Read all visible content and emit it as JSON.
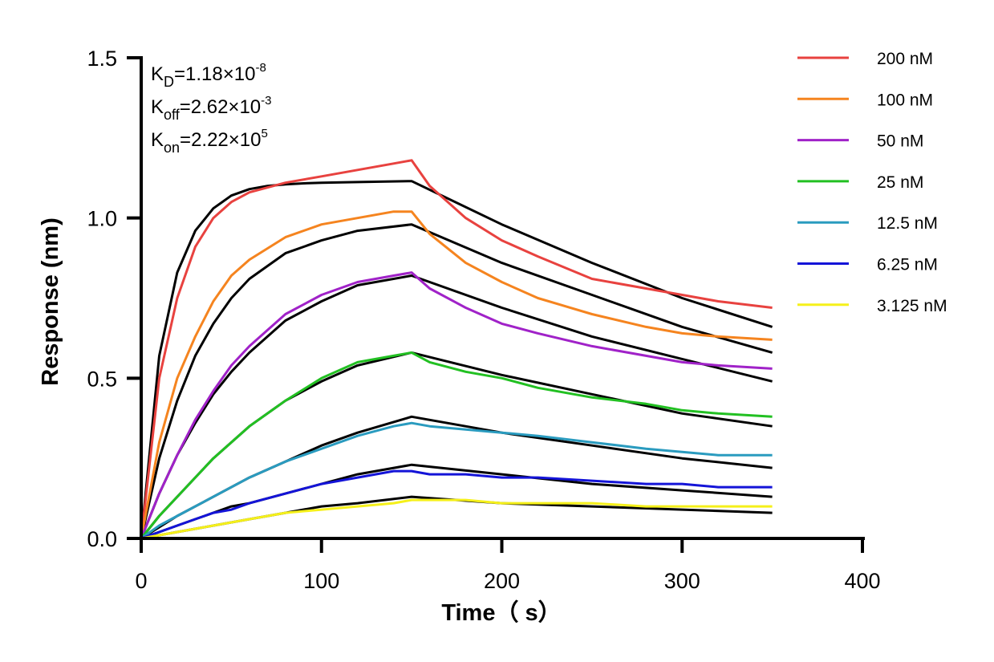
{
  "chart_data": {
    "type": "line",
    "xlabel": "Time（ s）",
    "ylabel": "Response (nm)",
    "xlim": [
      0,
      400
    ],
    "ylim": [
      0,
      1.5
    ],
    "x_ticks": [
      0,
      100,
      200,
      300,
      400
    ],
    "x_tick_labels": [
      "0",
      "100",
      "200",
      "300",
      "400"
    ],
    "y_ticks": [
      0,
      0.5,
      1.0,
      1.5
    ],
    "y_tick_labels": [
      "0.0",
      "0.5",
      "1.0",
      "1.5"
    ],
    "legend_position": "top-right",
    "grid": false,
    "annotations": [
      {
        "base": "K",
        "sub": "D",
        "mid": "=1.18×10",
        "sup": "-8"
      },
      {
        "base": "K",
        "sub": "off",
        "mid": "=2.62×10",
        "sup": "-3"
      },
      {
        "base": "K",
        "sub": "on",
        "mid": "=2.22×10",
        "sup": "5"
      }
    ],
    "fit_color": "#000000",
    "series": [
      {
        "name": "200 nM",
        "color": "#e8423f",
        "x": [
          0,
          10,
          20,
          30,
          40,
          50,
          60,
          80,
          100,
          120,
          140,
          150,
          160,
          180,
          200,
          220,
          250,
          280,
          300,
          320,
          350
        ],
        "y": [
          0,
          0.5,
          0.75,
          0.91,
          1.0,
          1.05,
          1.08,
          1.11,
          1.13,
          1.15,
          1.17,
          1.18,
          1.1,
          1.0,
          0.93,
          0.88,
          0.81,
          0.78,
          0.76,
          0.74,
          0.72
        ],
        "fit_x": [
          0,
          10,
          20,
          30,
          40,
          50,
          60,
          70,
          80,
          90,
          100,
          120,
          150,
          200,
          250,
          300,
          350
        ],
        "fit_y": [
          0,
          0.57,
          0.83,
          0.96,
          1.03,
          1.07,
          1.09,
          1.1,
          1.105,
          1.108,
          1.11,
          1.112,
          1.115,
          0.98,
          0.86,
          0.75,
          0.66
        ]
      },
      {
        "name": "100 nM",
        "color": "#f5841f",
        "x": [
          0,
          10,
          20,
          30,
          40,
          50,
          60,
          80,
          100,
          120,
          140,
          150,
          160,
          180,
          200,
          220,
          250,
          280,
          300,
          320,
          350
        ],
        "y": [
          0,
          0.3,
          0.5,
          0.63,
          0.74,
          0.82,
          0.87,
          0.94,
          0.98,
          1.0,
          1.02,
          1.02,
          0.95,
          0.86,
          0.8,
          0.75,
          0.7,
          0.66,
          0.64,
          0.63,
          0.62
        ],
        "fit_x": [
          0,
          10,
          20,
          30,
          40,
          50,
          60,
          80,
          100,
          120,
          150,
          200,
          250,
          300,
          350
        ],
        "fit_y": [
          0,
          0.25,
          0.43,
          0.57,
          0.67,
          0.75,
          0.81,
          0.89,
          0.93,
          0.96,
          0.98,
          0.86,
          0.76,
          0.66,
          0.58
        ]
      },
      {
        "name": "50 nM",
        "color": "#a022c8",
        "x": [
          0,
          10,
          20,
          30,
          40,
          50,
          60,
          80,
          100,
          120,
          140,
          150,
          160,
          180,
          200,
          220,
          250,
          280,
          300,
          320,
          350
        ],
        "y": [
          0,
          0.14,
          0.26,
          0.37,
          0.46,
          0.54,
          0.6,
          0.7,
          0.76,
          0.8,
          0.82,
          0.83,
          0.78,
          0.72,
          0.67,
          0.64,
          0.6,
          0.57,
          0.55,
          0.54,
          0.53
        ],
        "fit_x": [
          0,
          10,
          20,
          30,
          40,
          50,
          60,
          80,
          100,
          120,
          150,
          200,
          250,
          300,
          350
        ],
        "fit_y": [
          0,
          0.14,
          0.26,
          0.36,
          0.45,
          0.52,
          0.58,
          0.68,
          0.74,
          0.79,
          0.82,
          0.72,
          0.63,
          0.56,
          0.49
        ]
      },
      {
        "name": "25 nM",
        "color": "#22c022",
        "x": [
          0,
          10,
          20,
          30,
          40,
          50,
          60,
          80,
          100,
          120,
          140,
          150,
          160,
          180,
          200,
          220,
          250,
          280,
          300,
          320,
          350
        ],
        "y": [
          0,
          0.07,
          0.13,
          0.19,
          0.25,
          0.3,
          0.35,
          0.43,
          0.5,
          0.55,
          0.57,
          0.58,
          0.55,
          0.52,
          0.5,
          0.47,
          0.44,
          0.42,
          0.4,
          0.39,
          0.38
        ],
        "fit_x": [
          0,
          10,
          20,
          30,
          40,
          50,
          60,
          80,
          100,
          120,
          150,
          200,
          250,
          300,
          350
        ],
        "fit_y": [
          0,
          0.07,
          0.13,
          0.19,
          0.25,
          0.3,
          0.35,
          0.43,
          0.49,
          0.54,
          0.58,
          0.51,
          0.45,
          0.39,
          0.35
        ]
      },
      {
        "name": "12.5 nM",
        "color": "#2a9bbf",
        "x": [
          0,
          10,
          20,
          30,
          40,
          50,
          60,
          80,
          100,
          120,
          140,
          150,
          160,
          180,
          200,
          220,
          250,
          280,
          300,
          320,
          350
        ],
        "y": [
          0,
          0.04,
          0.07,
          0.1,
          0.13,
          0.16,
          0.19,
          0.24,
          0.28,
          0.32,
          0.35,
          0.36,
          0.35,
          0.34,
          0.33,
          0.32,
          0.3,
          0.28,
          0.27,
          0.26,
          0.26
        ],
        "fit_x": [
          0,
          10,
          20,
          30,
          40,
          50,
          60,
          80,
          100,
          120,
          150,
          200,
          250,
          300,
          350
        ],
        "fit_y": [
          0,
          0.035,
          0.07,
          0.1,
          0.13,
          0.16,
          0.19,
          0.24,
          0.29,
          0.33,
          0.38,
          0.33,
          0.29,
          0.25,
          0.22
        ]
      },
      {
        "name": "6.25 nM",
        "color": "#1414d8",
        "x": [
          0,
          10,
          20,
          30,
          40,
          50,
          60,
          80,
          100,
          120,
          140,
          150,
          160,
          180,
          200,
          220,
          250,
          280,
          300,
          320,
          350
        ],
        "y": [
          0,
          0.02,
          0.04,
          0.06,
          0.08,
          0.09,
          0.11,
          0.14,
          0.17,
          0.19,
          0.21,
          0.21,
          0.2,
          0.2,
          0.19,
          0.19,
          0.18,
          0.17,
          0.17,
          0.16,
          0.16
        ],
        "fit_x": [
          0,
          10,
          20,
          30,
          40,
          50,
          60,
          80,
          100,
          120,
          150,
          200,
          250,
          300,
          350
        ],
        "fit_y": [
          0,
          0.02,
          0.04,
          0.06,
          0.08,
          0.1,
          0.11,
          0.14,
          0.17,
          0.2,
          0.23,
          0.2,
          0.17,
          0.15,
          0.13
        ]
      },
      {
        "name": "3.125 nM",
        "color": "#f5f01a",
        "x": [
          0,
          10,
          20,
          30,
          40,
          50,
          60,
          80,
          100,
          120,
          140,
          150,
          160,
          180,
          200,
          220,
          250,
          280,
          300,
          320,
          350
        ],
        "y": [
          0,
          0.01,
          0.02,
          0.03,
          0.04,
          0.05,
          0.06,
          0.08,
          0.09,
          0.1,
          0.11,
          0.12,
          0.12,
          0.12,
          0.11,
          0.11,
          0.11,
          0.1,
          0.1,
          0.1,
          0.1
        ],
        "fit_x": [
          0,
          10,
          20,
          30,
          40,
          50,
          60,
          80,
          100,
          120,
          150,
          200,
          250,
          300,
          350
        ],
        "fit_y": [
          0,
          0.01,
          0.02,
          0.03,
          0.04,
          0.05,
          0.06,
          0.08,
          0.1,
          0.11,
          0.13,
          0.11,
          0.1,
          0.09,
          0.08
        ]
      }
    ]
  }
}
